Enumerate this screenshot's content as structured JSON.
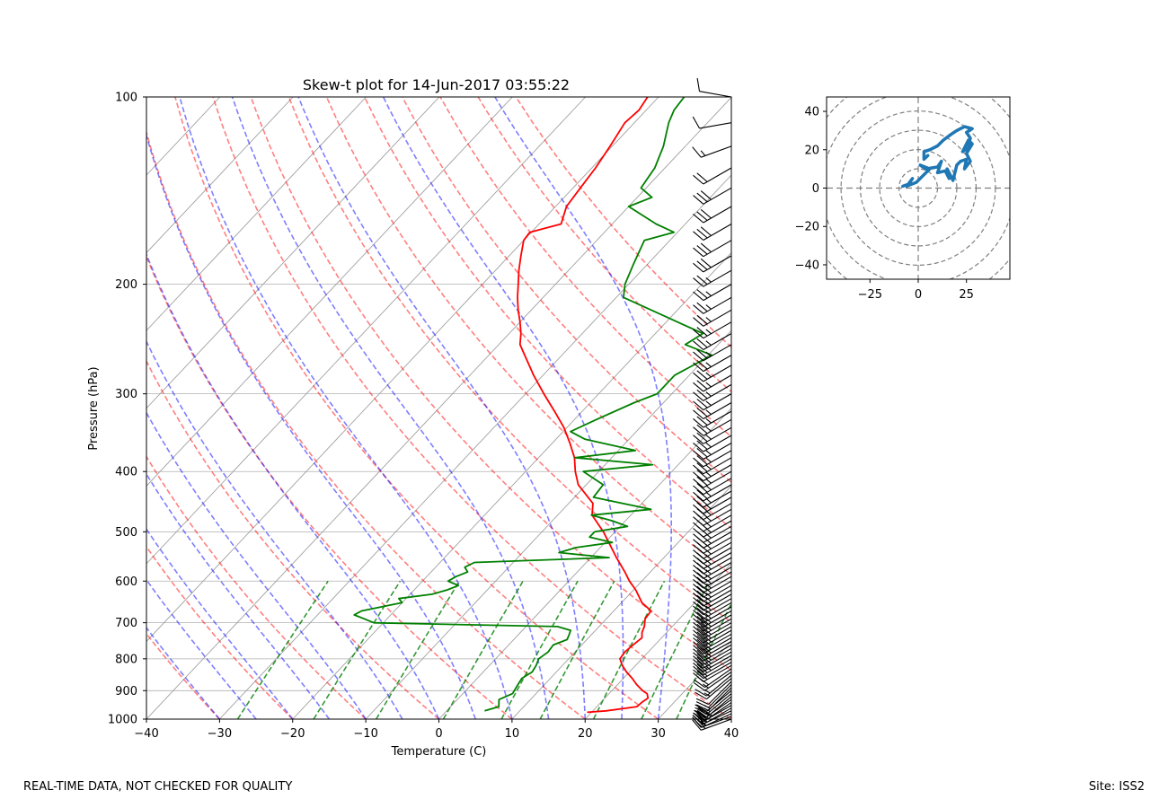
{
  "chart_data": [
    {
      "type": "line",
      "title": "Skew-t plot for 14-Jun-2017 03:55:22",
      "xlabel": "Temperature (C)",
      "ylabel": "Pressure (hPa)",
      "xlim": [
        -40,
        40
      ],
      "ylim": [
        1000,
        100
      ],
      "y_scale": "log",
      "x_ticks": [
        -40,
        -30,
        -20,
        -10,
        0,
        10,
        20,
        30,
        40
      ],
      "x_tick_labels": [
        "−40",
        "−30",
        "−20",
        "−10",
        "0",
        "10",
        "20",
        "30",
        "40"
      ],
      "y_ticks": [
        1000,
        900,
        800,
        700,
        600,
        500,
        400,
        300,
        200,
        100
      ],
      "y_tick_labels": [
        "1000",
        "900",
        "800",
        "700",
        "600",
        "500",
        "400",
        "300",
        "200",
        "100"
      ],
      "grid": true,
      "series": [
        {
          "kind": "temperature",
          "color": "#ff0000",
          "pressure": [
            975,
            970,
            955,
            940,
            925,
            910,
            900,
            880,
            860,
            840,
            820,
            800,
            780,
            760,
            740,
            725,
            710,
            690,
            670,
            650,
            620,
            600,
            580,
            550,
            520,
            500,
            470,
            450,
            420,
            400,
            380,
            360,
            340,
            320,
            300,
            280,
            260,
            250,
            240,
            230,
            220,
            210,
            200,
            190,
            180,
            170,
            165,
            160,
            150,
            140,
            130,
            120,
            110,
            105,
            100
          ],
          "temperature": [
            19.4,
            21.8,
            25.5,
            25.6,
            25.9,
            25.2,
            24.2,
            22.6,
            21.2,
            19.6,
            18.2,
            17.0,
            16.8,
            17.0,
            17.3,
            16.6,
            16.2,
            15.3,
            15.1,
            12.8,
            10.3,
            8.3,
            6.5,
            3.5,
            0.5,
            -1.6,
            -5.3,
            -6.7,
            -11.1,
            -13.2,
            -15.1,
            -17.6,
            -20.4,
            -23.8,
            -27.5,
            -31.3,
            -35.1,
            -37.1,
            -38.4,
            -40.0,
            -41.8,
            -43.5,
            -45.1,
            -46.8,
            -48.4,
            -50.0,
            -50.2,
            -47.0,
            -48.5,
            -49.0,
            -49.5,
            -50.3,
            -51.3,
            -51.0,
            -51.5
          ]
        },
        {
          "kind": "dewpoint",
          "color": "#008000",
          "pressure": [
            970,
            955,
            930,
            910,
            890,
            860,
            840,
            820,
            800,
            780,
            760,
            745,
            730,
            720,
            710,
            700,
            690,
            680,
            670,
            650,
            640,
            630,
            620,
            610,
            600,
            590,
            580,
            570,
            560,
            550,
            540,
            530,
            520,
            510,
            500,
            490,
            480,
            470,
            460,
            450,
            440,
            420,
            400,
            390,
            380,
            370,
            355,
            345,
            330,
            310,
            300,
            280,
            260,
            250,
            240,
            225,
            210,
            200,
            185,
            170,
            165,
            160,
            150,
            145,
            140,
            130,
            120,
            110,
            105,
            100
          ],
          "temperature": [
            5.2,
            6.6,
            5.7,
            6.8,
            6.5,
            6.1,
            6.7,
            6.4,
            5.9,
            6.3,
            6.1,
            7.3,
            6.9,
            6.6,
            4.3,
            -21.3,
            -23.1,
            -25.0,
            -24.5,
            -20.0,
            -21.0,
            -17.0,
            -15.5,
            -14.5,
            -16.5,
            -16.0,
            -15.0,
            -16.0,
            -15.3,
            2.5,
            -5.0,
            -3.3,
            1.0,
            -2.8,
            -2.8,
            1.0,
            -1.8,
            -5.4,
            2.0,
            -2.6,
            -7.4,
            -7.7,
            -12.1,
            -3.5,
            -15.0,
            -7.7,
            -16.0,
            -19.0,
            -17.0,
            -14.0,
            -12.0,
            -12.0,
            -9.5,
            -14.5,
            -13.5,
            -21.0,
            -29.0,
            -30.5,
            -32.0,
            -33.5,
            -30.5,
            -34.0,
            -40.0,
            -38.0,
            -40.7,
            -41.4,
            -43.0,
            -45.3,
            -46.2,
            -46.5
          ]
        }
      ],
      "reference_lines": {
        "dry_adiabats": {
          "color": "#ff0000",
          "style": "dashed"
        },
        "moist_adiabats": {
          "color": "#0000ff",
          "style": "dashed"
        },
        "mixing_ratio": {
          "color": "#008000",
          "style": "dashed"
        },
        "isotherms": {
          "color": "#808080",
          "style": "solid"
        }
      },
      "wind_barbs": {
        "color": "#000000",
        "pressure": [
          1000,
          990,
          980,
          970,
          960,
          950,
          940,
          930,
          920,
          910,
          900,
          890,
          880,
          870,
          860,
          850,
          840,
          830,
          820,
          810,
          800,
          790,
          780,
          770,
          760,
          750,
          740,
          730,
          720,
          710,
          700,
          690,
          680,
          670,
          660,
          650,
          640,
          630,
          620,
          610,
          600,
          590,
          580,
          570,
          560,
          550,
          540,
          530,
          520,
          510,
          500,
          490,
          480,
          470,
          460,
          450,
          440,
          430,
          420,
          410,
          400,
          390,
          380,
          370,
          360,
          350,
          340,
          330,
          320,
          310,
          300,
          290,
          280,
          270,
          260,
          250,
          240,
          230,
          220,
          210,
          200,
          190,
          180,
          170,
          160,
          150,
          140,
          130,
          120,
          110,
          100
        ],
        "speed_kt": [
          15,
          15,
          20,
          20,
          20,
          25,
          25,
          20,
          20,
          15,
          15,
          10,
          10,
          10,
          15,
          15,
          15,
          20,
          20,
          20,
          25,
          25,
          25,
          25,
          30,
          30,
          30,
          30,
          30,
          30,
          30,
          30,
          30,
          25,
          25,
          25,
          25,
          25,
          25,
          25,
          25,
          25,
          25,
          25,
          25,
          25,
          25,
          25,
          25,
          25,
          25,
          25,
          25,
          25,
          25,
          25,
          25,
          25,
          25,
          25,
          25,
          25,
          25,
          25,
          25,
          25,
          25,
          25,
          25,
          25,
          25,
          25,
          25,
          25,
          25,
          25,
          25,
          25,
          25,
          25,
          25,
          25,
          30,
          30,
          30,
          30,
          30,
          20,
          15,
          10,
          10
        ],
        "direction_deg": [
          250,
          250,
          245,
          245,
          240,
          240,
          235,
          235,
          230,
          230,
          230,
          225,
          225,
          225,
          230,
          230,
          235,
          235,
          240,
          240,
          240,
          240,
          240,
          240,
          240,
          240,
          240,
          240,
          240,
          240,
          240,
          240,
          240,
          240,
          240,
          240,
          240,
          240,
          240,
          240,
          240,
          240,
          240,
          240,
          240,
          240,
          240,
          240,
          240,
          240,
          240,
          240,
          240,
          240,
          240,
          240,
          240,
          240,
          240,
          240,
          240,
          240,
          240,
          240,
          240,
          240,
          240,
          240,
          240,
          240,
          240,
          240,
          240,
          240,
          240,
          240,
          240,
          240,
          240,
          240,
          240,
          240,
          240,
          240,
          240,
          240,
          240,
          240,
          250,
          260,
          280
        ]
      }
    },
    {
      "type": "line",
      "title": "",
      "xlim": [
        -47.5,
        47.5
      ],
      "ylim": [
        -47.5,
        47.5
      ],
      "x_ticks": [
        -25,
        0,
        25
      ],
      "x_tick_labels": [
        "−25",
        "0",
        "25"
      ],
      "y_ticks": [
        -40,
        -20,
        0,
        20,
        40
      ],
      "y_tick_labels": [
        "−40",
        "−20",
        "0",
        "20",
        "40"
      ],
      "rings": [
        10,
        20,
        30,
        40,
        50,
        60
      ],
      "series": [
        {
          "color": "#1f77b4",
          "u": [
            -8,
            -5,
            -3,
            -6,
            -1,
            2,
            6,
            1,
            4,
            10,
            12,
            10,
            14,
            16,
            15,
            18,
            20,
            22,
            25,
            24,
            27,
            25,
            28,
            26,
            23,
            26,
            27,
            25,
            28,
            24,
            20,
            17,
            13,
            10,
            6,
            3,
            3,
            5
          ],
          "v": [
            1,
            2,
            5,
            1,
            3,
            6,
            10,
            12,
            10,
            11,
            14,
            8,
            9,
            5,
            10,
            4,
            12,
            14,
            15,
            10,
            14,
            18,
            23,
            25,
            19,
            21,
            26,
            29,
            31,
            32,
            30,
            28,
            25,
            22,
            20,
            19,
            15,
            17
          ]
        }
      ]
    }
  ],
  "footer": {
    "quality_note": "REAL-TIME DATA, NOT CHECKED FOR QUALITY",
    "site": "Site: ISS2"
  }
}
